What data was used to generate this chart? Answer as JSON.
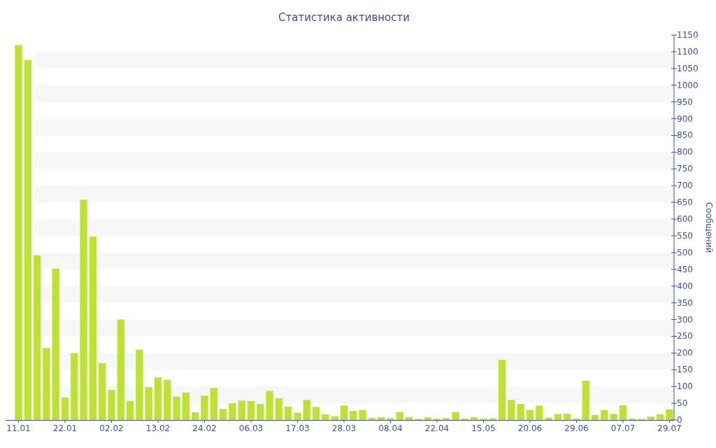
{
  "chart_data": {
    "type": "bar",
    "title": "Статистика активности",
    "ylabel": "Сообщений",
    "categories": [
      "11.01",
      null,
      null,
      null,
      null,
      "22.01",
      null,
      null,
      null,
      null,
      "02.02",
      null,
      null,
      null,
      null,
      "13.02",
      null,
      null,
      null,
      null,
      "24.02",
      null,
      null,
      null,
      null,
      "06.03",
      null,
      null,
      null,
      null,
      "17.03",
      null,
      null,
      null,
      null,
      "28.03",
      null,
      null,
      null,
      null,
      "08.04",
      null,
      null,
      null,
      null,
      "22.04",
      null,
      null,
      null,
      null,
      "15.05",
      null,
      null,
      null,
      null,
      "20.06",
      null,
      null,
      null,
      null,
      "29.06",
      null,
      null,
      null,
      null,
      "07.07",
      null,
      null,
      null,
      null,
      "29.07"
    ],
    "values": [
      1120,
      1075,
      492,
      215,
      452,
      67,
      200,
      658,
      548,
      170,
      90,
      300,
      57,
      210,
      98,
      127,
      120,
      70,
      82,
      23,
      73,
      96,
      33,
      50,
      58,
      57,
      48,
      87,
      65,
      40,
      22,
      60,
      39,
      17,
      11,
      43,
      27,
      30,
      6,
      8,
      6,
      24,
      9,
      3,
      8,
      4,
      6,
      24,
      4,
      9,
      4,
      5,
      180,
      60,
      48,
      30,
      43,
      7,
      18,
      19,
      4,
      117,
      15,
      30,
      18,
      44,
      4,
      3,
      10,
      17,
      32
    ],
    "color": "#bde232",
    "ylim": [
      0,
      1150
    ],
    "yticks": [
      0,
      50,
      100,
      150,
      200,
      250,
      300,
      350,
      400,
      450,
      500,
      550,
      600,
      650,
      700,
      750,
      800,
      850,
      900,
      950,
      1000,
      1050,
      1100,
      1150
    ],
    "bands": [
      {
        "axis": "y",
        "from": 50,
        "to": 100,
        "color": "#f7f7f7"
      },
      {
        "axis": "y",
        "from": 150,
        "to": 200,
        "color": "#f7f7f7"
      },
      {
        "axis": "y",
        "from": 250,
        "to": 300,
        "color": "#f7f7f7"
      },
      {
        "axis": "y",
        "from": 350,
        "to": 400,
        "color": "#f7f7f7"
      },
      {
        "axis": "y",
        "from": 450,
        "to": 500,
        "color": "#f7f7f7"
      },
      {
        "axis": "y",
        "from": 550,
        "to": 600,
        "color": "#f7f7f7"
      },
      {
        "axis": "y",
        "from": 650,
        "to": 700,
        "color": "#f7f7f7"
      },
      {
        "axis": "y",
        "from": 750,
        "to": 800,
        "color": "#f7f7f7"
      },
      {
        "axis": "y",
        "from": 850,
        "to": 900,
        "color": "#f7f7f7"
      },
      {
        "axis": "y",
        "from": 950,
        "to": 1000,
        "color": "#f7f7f7"
      },
      {
        "axis": "y",
        "from": 1050,
        "to": 1100,
        "color": "#f7f7f7"
      }
    ]
  }
}
